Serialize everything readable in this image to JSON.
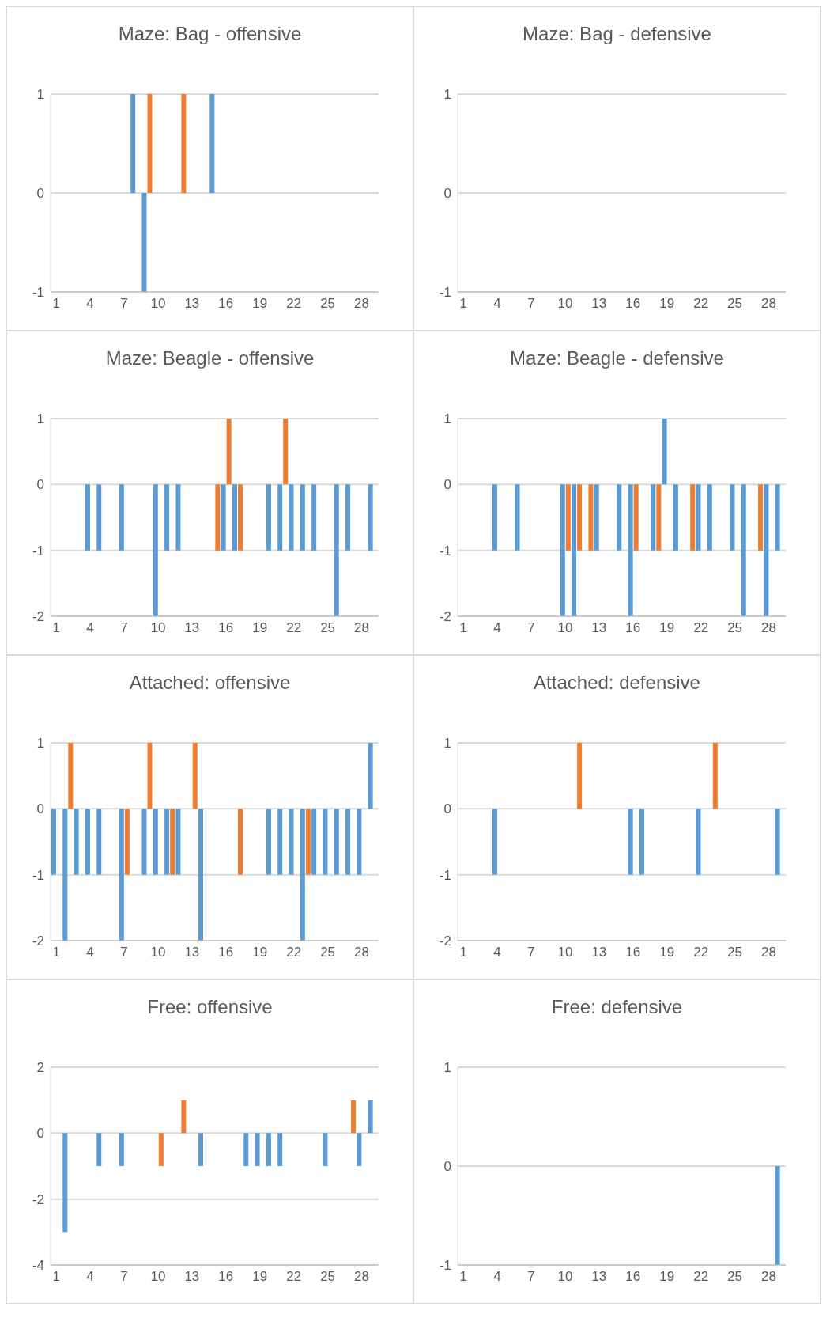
{
  "chart_data": [
    {
      "type": "bar",
      "title": "Maze: Bag - offensive",
      "categories": [
        "1",
        null,
        null,
        "4",
        null,
        null,
        "7",
        null,
        null,
        "10",
        null,
        null,
        "13",
        null,
        null,
        "16",
        null,
        null,
        "19",
        null,
        null,
        "22",
        null,
        null,
        "25",
        null,
        null,
        "28",
        null
      ],
      "series": [
        {
          "color": "#5b9bd5",
          "values": [
            0,
            0,
            0,
            0,
            0,
            0,
            0,
            1,
            -1,
            0,
            0,
            0,
            0,
            0,
            1,
            0,
            0,
            0,
            0,
            0,
            0,
            0,
            0,
            0,
            0,
            0,
            0,
            0,
            0
          ]
        },
        {
          "color": "#ed7d31",
          "values": [
            0,
            0,
            0,
            0,
            0,
            0,
            0,
            0,
            1,
            0,
            0,
            1,
            0,
            0,
            0,
            0,
            0,
            0,
            0,
            0,
            0,
            0,
            0,
            0,
            0,
            0,
            0,
            0,
            0
          ]
        }
      ],
      "ylim": [
        -1,
        1
      ],
      "yticks": [
        -1,
        0,
        1
      ],
      "grid": "y"
    },
    {
      "type": "bar",
      "title": "Maze: Bag - defensive",
      "categories": [
        "1",
        null,
        null,
        "4",
        null,
        null,
        "7",
        null,
        null,
        "10",
        null,
        null,
        "13",
        null,
        null,
        "16",
        null,
        null,
        "19",
        null,
        null,
        "22",
        null,
        null,
        "25",
        null,
        null,
        "28",
        null
      ],
      "series": [
        {
          "color": "#5b9bd5",
          "values": [
            0,
            0,
            0,
            0,
            0,
            0,
            0,
            0,
            0,
            0,
            0,
            0,
            0,
            0,
            0,
            0,
            0,
            0,
            0,
            0,
            0,
            0,
            0,
            0,
            0,
            0,
            0,
            0,
            0
          ]
        },
        {
          "color": "#ed7d31",
          "values": [
            0,
            0,
            0,
            0,
            0,
            0,
            0,
            0,
            0,
            0,
            0,
            0,
            0,
            0,
            0,
            0,
            0,
            0,
            0,
            0,
            0,
            0,
            0,
            0,
            0,
            0,
            0,
            0,
            0
          ]
        }
      ],
      "ylim": [
        -1,
        1
      ],
      "yticks": [
        -1,
        0,
        1
      ],
      "grid": "y"
    },
    {
      "type": "bar",
      "title": "Maze: Beagle - offensive",
      "categories": [
        "1",
        null,
        null,
        "4",
        null,
        null,
        "7",
        null,
        null,
        "10",
        null,
        null,
        "13",
        null,
        null,
        "16",
        null,
        null,
        "19",
        null,
        null,
        "22",
        null,
        null,
        "25",
        null,
        null,
        "28",
        null
      ],
      "series": [
        {
          "color": "#5b9bd5",
          "values": [
            0,
            0,
            0,
            -1,
            -1,
            0,
            -1,
            0,
            0,
            -2,
            -1,
            -1,
            0,
            0,
            0,
            -1,
            -1,
            0,
            0,
            -1,
            -1,
            -1,
            -1,
            -1,
            0,
            -2,
            -1,
            0,
            -1
          ]
        },
        {
          "color": "#ed7d31",
          "values": [
            0,
            0,
            0,
            0,
            0,
            0,
            0,
            0,
            0,
            0,
            0,
            0,
            0,
            0,
            -1,
            1,
            -1,
            0,
            0,
            0,
            1,
            0,
            0,
            0,
            0,
            0,
            0,
            0,
            0
          ]
        }
      ],
      "ylim": [
        -2,
        1
      ],
      "yticks": [
        -2,
        -1,
        0,
        1
      ],
      "grid": "y"
    },
    {
      "type": "bar",
      "title": "Maze: Beagle - defensive",
      "categories": [
        "1",
        null,
        null,
        "4",
        null,
        null,
        "7",
        null,
        null,
        "10",
        null,
        null,
        "13",
        null,
        null,
        "16",
        null,
        null,
        "19",
        null,
        null,
        "22",
        null,
        null,
        "25",
        null,
        null,
        "28",
        null
      ],
      "series": [
        {
          "color": "#5b9bd5",
          "values": [
            0,
            0,
            0,
            -1,
            0,
            -1,
            0,
            0,
            0,
            -2,
            -2,
            0,
            -1,
            0,
            -1,
            -2,
            0,
            -1,
            1,
            -1,
            0,
            -1,
            -1,
            0,
            -1,
            -2,
            0,
            -2,
            -1
          ]
        },
        {
          "color": "#ed7d31",
          "values": [
            0,
            0,
            0,
            0,
            0,
            0,
            0,
            0,
            0,
            -1,
            -1,
            -1,
            0,
            0,
            0,
            -1,
            0,
            -1,
            0,
            0,
            -1,
            0,
            0,
            0,
            0,
            0,
            -1,
            0,
            0
          ]
        }
      ],
      "ylim": [
        -2,
        1
      ],
      "yticks": [
        -2,
        -1,
        0,
        1
      ],
      "grid": "y"
    },
    {
      "type": "bar",
      "title": "Attached: offensive",
      "categories": [
        "1",
        null,
        null,
        "4",
        null,
        null,
        "7",
        null,
        null,
        "10",
        null,
        null,
        "13",
        null,
        null,
        "16",
        null,
        null,
        "19",
        null,
        null,
        "22",
        null,
        null,
        "25",
        null,
        null,
        "28",
        null
      ],
      "series": [
        {
          "color": "#5b9bd5",
          "values": [
            -1,
            -2,
            -1,
            -1,
            -1,
            0,
            -2,
            0,
            -1,
            -1,
            -1,
            -1,
            0,
            -2,
            0,
            0,
            0,
            0,
            0,
            -1,
            -1,
            -1,
            -2,
            -1,
            -1,
            -1,
            -1,
            -1,
            1
          ]
        },
        {
          "color": "#ed7d31",
          "values": [
            0,
            1,
            0,
            0,
            0,
            0,
            -1,
            0,
            1,
            0,
            -1,
            0,
            1,
            0,
            0,
            0,
            -1,
            0,
            0,
            0,
            0,
            0,
            -1,
            0,
            0,
            0,
            0,
            0,
            0
          ]
        }
      ],
      "ylim": [
        -2,
        1
      ],
      "yticks": [
        -2,
        -1,
        0,
        1
      ],
      "grid": "y"
    },
    {
      "type": "bar",
      "title": "Attached: defensive",
      "categories": [
        "1",
        null,
        null,
        "4",
        null,
        null,
        "7",
        null,
        null,
        "10",
        null,
        null,
        "13",
        null,
        null,
        "16",
        null,
        null,
        "19",
        null,
        null,
        "22",
        null,
        null,
        "25",
        null,
        null,
        "28",
        null
      ],
      "series": [
        {
          "color": "#5b9bd5",
          "values": [
            0,
            0,
            0,
            -1,
            0,
            0,
            0,
            0,
            0,
            0,
            0,
            0,
            0,
            0,
            0,
            -1,
            -1,
            0,
            0,
            0,
            0,
            -1,
            0,
            0,
            0,
            0,
            0,
            0,
            -1
          ]
        },
        {
          "color": "#ed7d31",
          "values": [
            0,
            0,
            0,
            0,
            0,
            0,
            0,
            0,
            0,
            0,
            1,
            0,
            0,
            0,
            0,
            0,
            0,
            0,
            0,
            0,
            0,
            0,
            1,
            0,
            0,
            0,
            0,
            0,
            0
          ]
        }
      ],
      "ylim": [
        -2,
        1
      ],
      "yticks": [
        -2,
        -1,
        0,
        1
      ],
      "grid": "y"
    },
    {
      "type": "bar",
      "title": "Free: offensive",
      "categories": [
        "1",
        null,
        null,
        "4",
        null,
        null,
        "7",
        null,
        null,
        "10",
        null,
        null,
        "13",
        null,
        null,
        "16",
        null,
        null,
        "19",
        null,
        null,
        "22",
        null,
        null,
        "25",
        null,
        null,
        "28",
        null
      ],
      "series": [
        {
          "color": "#5b9bd5",
          "values": [
            0,
            -3,
            0,
            0,
            -1,
            0,
            -1,
            0,
            0,
            0,
            0,
            0,
            0,
            -1,
            0,
            0,
            0,
            -1,
            -1,
            -1,
            -1,
            0,
            0,
            0,
            -1,
            0,
            0,
            -1,
            1
          ]
        },
        {
          "color": "#ed7d31",
          "values": [
            0,
            0,
            0,
            0,
            0,
            0,
            0,
            0,
            0,
            -1,
            0,
            1,
            0,
            0,
            0,
            0,
            0,
            0,
            0,
            0,
            0,
            0,
            0,
            0,
            0,
            0,
            1,
            0,
            0
          ]
        }
      ],
      "ylim": [
        -4,
        2
      ],
      "yticks": [
        -4,
        -2,
        0,
        2
      ],
      "grid": "y"
    },
    {
      "type": "bar",
      "title": "Free: defensive",
      "categories": [
        "1",
        null,
        null,
        "4",
        null,
        null,
        "7",
        null,
        null,
        "10",
        null,
        null,
        "13",
        null,
        null,
        "16",
        null,
        null,
        "19",
        null,
        null,
        "22",
        null,
        null,
        "25",
        null,
        null,
        "28",
        null
      ],
      "series": [
        {
          "color": "#5b9bd5",
          "values": [
            0,
            0,
            0,
            0,
            0,
            0,
            0,
            0,
            0,
            0,
            0,
            0,
            0,
            0,
            0,
            0,
            0,
            0,
            0,
            0,
            0,
            0,
            0,
            0,
            0,
            0,
            0,
            0,
            -1
          ]
        },
        {
          "color": "#ed7d31",
          "values": [
            0,
            0,
            0,
            0,
            0,
            0,
            0,
            0,
            0,
            0,
            0,
            0,
            0,
            0,
            0,
            0,
            0,
            0,
            0,
            0,
            0,
            0,
            0,
            0,
            0,
            0,
            0,
            0,
            0
          ]
        }
      ],
      "ylim": [
        -1,
        1
      ],
      "yticks": [
        -1,
        0,
        1
      ],
      "grid": "y"
    }
  ]
}
